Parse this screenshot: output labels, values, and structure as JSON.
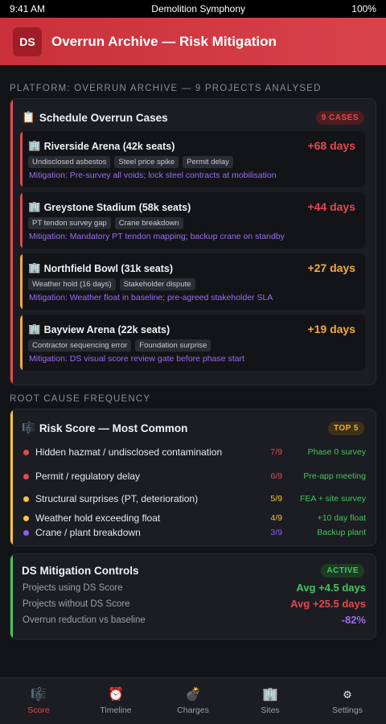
{
  "status_bar": {
    "time": "9:41 AM",
    "app_name": "Demolition Symphony",
    "battery": "100%"
  },
  "header": {
    "logo": "DS",
    "title": "Overrun Archive — Risk Mitigation"
  },
  "platform_heading": "PLATFORM: OVERRUN ARCHIVE — 9 PROJECTS ANALYSED",
  "overrun_card": {
    "icon": "📋",
    "title": "Schedule Overrun Cases",
    "badge": "9 CASES",
    "cases": [
      {
        "icon": "🏢",
        "name": "Riverside Arena (42k seats)",
        "days": "+68 days",
        "tags": [
          "Undisclosed asbestos",
          "Steel price spike",
          "Permit delay"
        ],
        "mitigation": "Mitigation: Pre-survey all voids; lock steel contracts at mobilisation",
        "severity_color": "#e5484d"
      },
      {
        "icon": "🏢",
        "name": "Greystone Stadium (58k seats)",
        "days": "+44 days",
        "tags": [
          "PT tendon survey gap",
          "Crane breakdown"
        ],
        "mitigation": "Mitigation: Mandatory PT tendon mapping; backup crane on standby",
        "severity_color": "#e5484d"
      },
      {
        "icon": "🏢",
        "name": "Northfield Bowl (31k seats)",
        "days": "+27 days",
        "tags": [
          "Weather hold (16 days)",
          "Stakeholder dispute"
        ],
        "mitigation": "Mitigation: Weather float in baseline; pre-agreed stakeholder SLA",
        "severity_color": "#f5a941"
      },
      {
        "icon": "🏢",
        "name": "Bayview Arena (22k seats)",
        "days": "+19 days",
        "tags": [
          "Contractor sequencing error",
          "Foundation surprise"
        ],
        "mitigation": "Mitigation: DS visual score review gate before phase start",
        "severity_color": "#f5a941"
      }
    ]
  },
  "root_cause_heading": "ROOT CAUSE FREQUENCY",
  "risk_card": {
    "icon": "🎼",
    "title": "Risk Score — Most Common",
    "badge": "TOP 5",
    "rows": [
      {
        "label": "Hidden hazmat / undisclosed contamination",
        "ratio": "7/9",
        "fix": "Phase 0 survey",
        "color": "#e5484d"
      },
      {
        "label": "Permit / regulatory delay",
        "ratio": "6/9",
        "fix": "Pre-app meeting",
        "color": "#e5484d"
      },
      {
        "label": "Structural surprises (PT, deterioration)",
        "ratio": "5/9",
        "fix": "FEA + site survey",
        "color": "#f5c542"
      },
      {
        "label": "Weather hold exceeding float",
        "ratio": "4/9",
        "fix": "+10 day float",
        "color": "#f5c542"
      },
      {
        "label": "Crane / plant breakdown",
        "ratio": "3/9",
        "fix": "Backup plant",
        "color": "#8b5cf6"
      }
    ]
  },
  "controls_card": {
    "title": "DS Mitigation Controls",
    "badge": "ACTIVE",
    "rows": [
      {
        "label": "Projects using DS Score",
        "value": "Avg +4.5 days",
        "color": "#45c45d"
      },
      {
        "label": "Projects without DS Score",
        "value": "Avg +25.5 days",
        "color": "#e5484d"
      },
      {
        "label": "Overrun reduction vs baseline",
        "value": "-82%",
        "color": "#9b6cf2"
      }
    ]
  },
  "bottom_nav": [
    {
      "icon": "🎼",
      "icon_name": "score-icon",
      "label": "Score",
      "active": true
    },
    {
      "icon": "⏰",
      "icon_name": "timeline-icon",
      "label": "Timeline",
      "active": false
    },
    {
      "icon": "💣",
      "icon_name": "charges-icon",
      "label": "Charges",
      "active": false
    },
    {
      "icon": "🏢",
      "icon_name": "sites-icon",
      "label": "Sites",
      "active": false
    },
    {
      "icon": "⚙",
      "icon_name": "settings-icon",
      "label": "Settings",
      "active": false
    }
  ],
  "colors": {
    "brand_red": "#d8424b",
    "active_green": "#45c45d",
    "danger": "#e5484d",
    "warning": "#f5a941",
    "purple": "#9b6cf2"
  }
}
